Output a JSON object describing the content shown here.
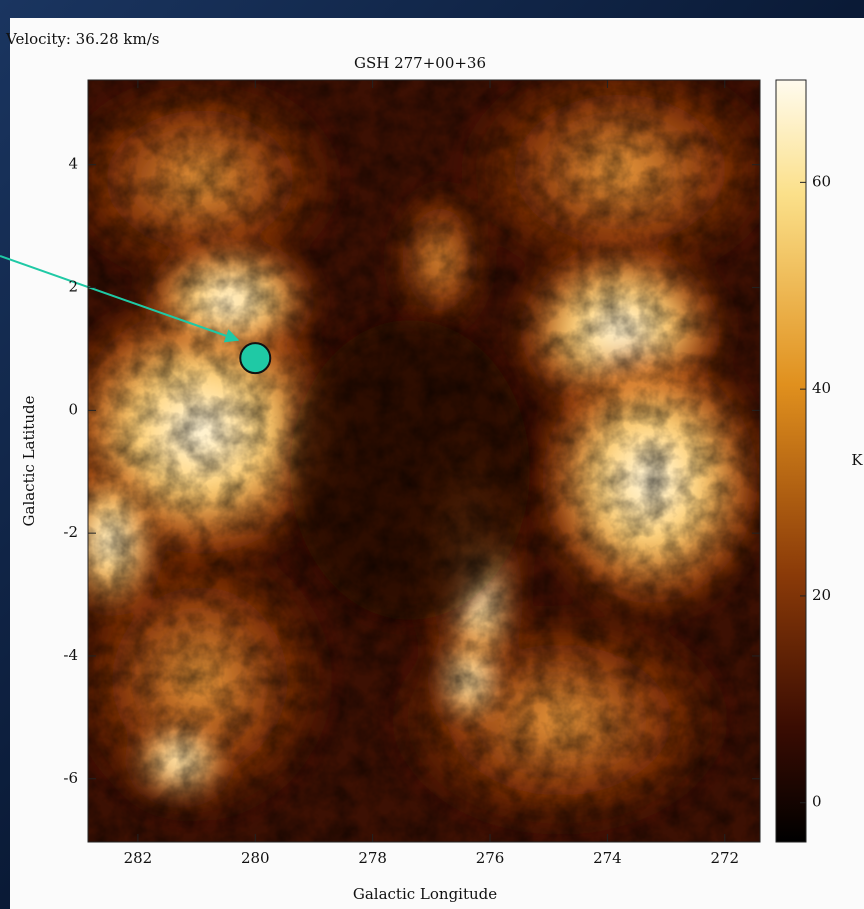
{
  "chart_data": {
    "type": "heatmap",
    "annotation": "Velocity: 36.28 km/s",
    "title": "GSH 277+00+36",
    "x_label": "Galactic Longitude",
    "y_label": "Galactic Latitude",
    "xlim": [
      282.85,
      271.4
    ],
    "xticks": [
      282,
      280,
      278,
      276,
      274,
      272
    ],
    "ylim": [
      -7.03,
      5.38
    ],
    "yticks": [
      -6,
      -4,
      -2,
      0,
      2,
      4
    ],
    "clim": [
      -3.8,
      69.9
    ],
    "cticks": [
      0,
      20,
      40,
      60
    ],
    "colorbar_label": "K",
    "marker": {
      "x": 280.0,
      "y": 0.85,
      "color": "#1fc9a5"
    }
  }
}
